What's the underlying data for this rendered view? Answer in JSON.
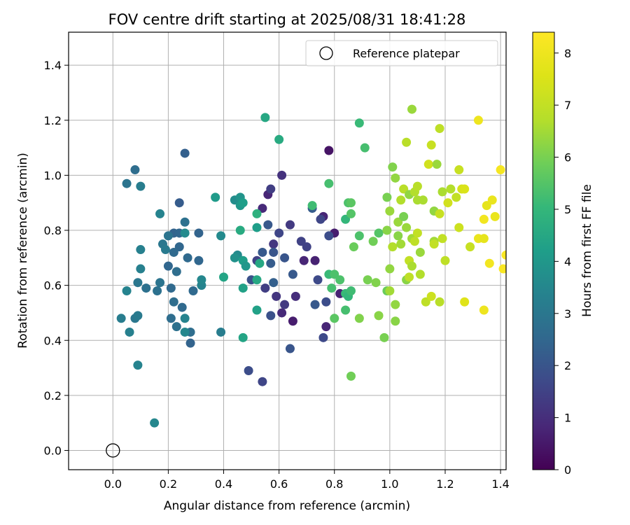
{
  "chart_data": {
    "type": "scatter",
    "title": "FOV centre drift starting at 2025/08/31 18:41:28",
    "xlabel": "Angular distance from reference (arcmin)",
    "ylabel": "Rotation from reference (arcmin)",
    "xlim": [
      -0.16,
      1.42
    ],
    "ylim": [
      -0.07,
      1.52
    ],
    "xticks": [
      "0.0",
      "0.2",
      "0.4",
      "0.6",
      "0.8",
      "1.0",
      "1.2",
      "1.4"
    ],
    "yticks": [
      "0.0",
      "0.2",
      "0.4",
      "0.6",
      "0.8",
      "1.0",
      "1.2",
      "1.4"
    ],
    "grid": true,
    "legend": {
      "position": "top-right",
      "label": "Reference platepar"
    },
    "reference_point": {
      "x": 0.0,
      "y": 0.0
    },
    "colorbar": {
      "label": "Hours from first FF file",
      "colormap": "viridis",
      "range": [
        0,
        8.4
      ],
      "ticks": [
        "0",
        "1",
        "2",
        "3",
        "4",
        "5",
        "6",
        "7",
        "8"
      ]
    },
    "points": [
      {
        "x": 0.78,
        "y": 1.09,
        "c": 0.4
      },
      {
        "x": 0.8,
        "y": 0.79,
        "c": 0.6
      },
      {
        "x": 0.82,
        "y": 0.57,
        "c": 0.7
      },
      {
        "x": 0.77,
        "y": 0.45,
        "c": 0.8
      },
      {
        "x": 0.76,
        "y": 0.85,
        "c": 0.8
      },
      {
        "x": 0.73,
        "y": 0.69,
        "c": 0.7
      },
      {
        "x": 0.65,
        "y": 0.47,
        "c": 0.6
      },
      {
        "x": 0.61,
        "y": 0.5,
        "c": 0.9
      },
      {
        "x": 0.69,
        "y": 0.69,
        "c": 0.8
      },
      {
        "x": 0.66,
        "y": 0.56,
        "c": 1.0
      },
      {
        "x": 0.61,
        "y": 1.0,
        "c": 1.1
      },
      {
        "x": 0.54,
        "y": 0.88,
        "c": 0.9
      },
      {
        "x": 0.56,
        "y": 0.93,
        "c": 0.8
      },
      {
        "x": 0.59,
        "y": 0.56,
        "c": 1.2
      },
      {
        "x": 0.62,
        "y": 0.53,
        "c": 1.3
      },
      {
        "x": 0.58,
        "y": 0.75,
        "c": 1.2
      },
      {
        "x": 0.64,
        "y": 0.82,
        "c": 1.3
      },
      {
        "x": 0.55,
        "y": 0.59,
        "c": 1.4
      },
      {
        "x": 0.52,
        "y": 0.69,
        "c": 1.5
      },
      {
        "x": 0.57,
        "y": 0.95,
        "c": 1.4
      },
      {
        "x": 0.6,
        "y": 0.79,
        "c": 1.6
      },
      {
        "x": 0.68,
        "y": 0.76,
        "c": 1.5
      },
      {
        "x": 0.7,
        "y": 0.74,
        "c": 1.5
      },
      {
        "x": 0.75,
        "y": 0.84,
        "c": 1.6
      },
      {
        "x": 0.74,
        "y": 0.62,
        "c": 1.7
      },
      {
        "x": 0.77,
        "y": 0.54,
        "c": 1.8
      },
      {
        "x": 0.76,
        "y": 0.41,
        "c": 1.7
      },
      {
        "x": 0.78,
        "y": 0.78,
        "c": 1.8
      },
      {
        "x": 0.5,
        "y": 0.62,
        "c": 1.9
      },
      {
        "x": 0.49,
        "y": 0.29,
        "c": 1.8
      },
      {
        "x": 0.54,
        "y": 0.25,
        "c": 1.6
      },
      {
        "x": 0.57,
        "y": 0.49,
        "c": 1.9
      },
      {
        "x": 0.64,
        "y": 0.37,
        "c": 2.0
      },
      {
        "x": 0.62,
        "y": 0.7,
        "c": 2.0
      },
      {
        "x": 0.65,
        "y": 0.64,
        "c": 2.1
      },
      {
        "x": 0.73,
        "y": 0.53,
        "c": 2.1
      },
      {
        "x": 0.72,
        "y": 0.88,
        "c": 2.2
      },
      {
        "x": 0.54,
        "y": 0.72,
        "c": 2.1
      },
      {
        "x": 0.58,
        "y": 0.72,
        "c": 2.0
      },
      {
        "x": 0.56,
        "y": 0.82,
        "c": 2.1
      },
      {
        "x": 0.57,
        "y": 0.68,
        "c": 2.2
      },
      {
        "x": 0.58,
        "y": 0.61,
        "c": 2.3
      },
      {
        "x": 0.24,
        "y": 0.9,
        "c": 2.2
      },
      {
        "x": 0.26,
        "y": 1.08,
        "c": 2.3
      },
      {
        "x": 0.28,
        "y": 0.39,
        "c": 2.4
      },
      {
        "x": 0.2,
        "y": 0.67,
        "c": 2.5
      },
      {
        "x": 0.22,
        "y": 0.79,
        "c": 2.4
      },
      {
        "x": 0.24,
        "y": 0.74,
        "c": 2.5
      },
      {
        "x": 0.22,
        "y": 0.72,
        "c": 2.6
      },
      {
        "x": 0.24,
        "y": 0.79,
        "c": 2.5
      },
      {
        "x": 0.21,
        "y": 0.59,
        "c": 2.6
      },
      {
        "x": 0.22,
        "y": 0.54,
        "c": 2.7
      },
      {
        "x": 0.25,
        "y": 0.52,
        "c": 2.6
      },
      {
        "x": 0.21,
        "y": 0.48,
        "c": 2.7
      },
      {
        "x": 0.23,
        "y": 0.45,
        "c": 2.8
      },
      {
        "x": 0.28,
        "y": 0.43,
        "c": 2.7
      },
      {
        "x": 0.29,
        "y": 0.58,
        "c": 2.6
      },
      {
        "x": 0.31,
        "y": 0.69,
        "c": 2.5
      },
      {
        "x": 0.31,
        "y": 0.79,
        "c": 2.4
      },
      {
        "x": 0.27,
        "y": 0.7,
        "c": 2.6
      },
      {
        "x": 0.23,
        "y": 0.65,
        "c": 2.7
      },
      {
        "x": 0.26,
        "y": 0.83,
        "c": 2.8
      },
      {
        "x": 0.2,
        "y": 0.78,
        "c": 2.9
      },
      {
        "x": 0.18,
        "y": 0.75,
        "c": 3.0
      },
      {
        "x": 0.19,
        "y": 0.73,
        "c": 3.1
      },
      {
        "x": 0.17,
        "y": 0.61,
        "c": 2.9
      },
      {
        "x": 0.16,
        "y": 0.58,
        "c": 2.8
      },
      {
        "x": 0.12,
        "y": 0.59,
        "c": 2.8
      },
      {
        "x": 0.09,
        "y": 0.61,
        "c": 3.0
      },
      {
        "x": 0.08,
        "y": 1.02,
        "c": 2.7
      },
      {
        "x": 0.05,
        "y": 0.97,
        "c": 2.9
      },
      {
        "x": 0.1,
        "y": 0.96,
        "c": 3.2
      },
      {
        "x": 0.17,
        "y": 0.86,
        "c": 3.4
      },
      {
        "x": 0.1,
        "y": 0.73,
        "c": 3.3
      },
      {
        "x": 0.1,
        "y": 0.66,
        "c": 3.3
      },
      {
        "x": 0.05,
        "y": 0.58,
        "c": 3.4
      },
      {
        "x": 0.03,
        "y": 0.48,
        "c": 3.2
      },
      {
        "x": 0.08,
        "y": 0.48,
        "c": 3.0
      },
      {
        "x": 0.09,
        "y": 0.49,
        "c": 3.1
      },
      {
        "x": 0.06,
        "y": 0.43,
        "c": 3.3
      },
      {
        "x": 0.09,
        "y": 0.31,
        "c": 3.4
      },
      {
        "x": 0.15,
        "y": 0.1,
        "c": 3.5
      },
      {
        "x": 0.26,
        "y": 0.43,
        "c": 3.5
      },
      {
        "x": 0.26,
        "y": 0.48,
        "c": 3.4
      },
      {
        "x": 0.32,
        "y": 0.6,
        "c": 3.4
      },
      {
        "x": 0.32,
        "y": 0.62,
        "c": 3.5
      },
      {
        "x": 0.26,
        "y": 0.79,
        "c": 3.6
      },
      {
        "x": 0.39,
        "y": 0.43,
        "c": 3.2
      },
      {
        "x": 0.39,
        "y": 0.78,
        "c": 3.6
      },
      {
        "x": 0.37,
        "y": 0.92,
        "c": 4.1
      },
      {
        "x": 0.4,
        "y": 0.63,
        "c": 4.4
      },
      {
        "x": 0.44,
        "y": 0.91,
        "c": 3.7
      },
      {
        "x": 0.45,
        "y": 0.71,
        "c": 3.6
      },
      {
        "x": 0.46,
        "y": 0.92,
        "c": 3.9
      },
      {
        "x": 0.46,
        "y": 0.89,
        "c": 4.0
      },
      {
        "x": 0.47,
        "y": 0.9,
        "c": 4.2
      },
      {
        "x": 0.44,
        "y": 0.7,
        "c": 3.8
      },
      {
        "x": 0.47,
        "y": 0.69,
        "c": 4.2
      },
      {
        "x": 0.48,
        "y": 0.67,
        "c": 4.0
      },
      {
        "x": 0.47,
        "y": 0.59,
        "c": 4.3
      },
      {
        "x": 0.47,
        "y": 0.41,
        "c": 4.4
      },
      {
        "x": 0.46,
        "y": 0.8,
        "c": 4.6
      },
      {
        "x": 0.52,
        "y": 0.81,
        "c": 4.2
      },
      {
        "x": 0.52,
        "y": 0.51,
        "c": 4.3
      },
      {
        "x": 0.53,
        "y": 0.68,
        "c": 4.5
      },
      {
        "x": 0.52,
        "y": 0.86,
        "c": 4.8
      },
      {
        "x": 0.55,
        "y": 1.21,
        "c": 4.5
      },
      {
        "x": 0.6,
        "y": 1.13,
        "c": 4.6
      },
      {
        "x": 0.52,
        "y": 0.62,
        "c": 4.5
      },
      {
        "x": 0.72,
        "y": 0.89,
        "c": 5.2
      },
      {
        "x": 0.78,
        "y": 0.64,
        "c": 5.1
      },
      {
        "x": 0.78,
        "y": 0.97,
        "c": 5.3
      },
      {
        "x": 0.79,
        "y": 0.59,
        "c": 5.3
      },
      {
        "x": 0.8,
        "y": 0.64,
        "c": 5.4
      },
      {
        "x": 0.8,
        "y": 0.48,
        "c": 5.6
      },
      {
        "x": 0.82,
        "y": 0.62,
        "c": 5.4
      },
      {
        "x": 0.84,
        "y": 0.51,
        "c": 5.3
      },
      {
        "x": 0.84,
        "y": 0.57,
        "c": 5.1
      },
      {
        "x": 0.85,
        "y": 0.56,
        "c": 5.0
      },
      {
        "x": 0.86,
        "y": 0.58,
        "c": 5.2
      },
      {
        "x": 0.84,
        "y": 0.84,
        "c": 5.0
      },
      {
        "x": 0.85,
        "y": 0.9,
        "c": 5.4
      },
      {
        "x": 0.86,
        "y": 0.86,
        "c": 5.5
      },
      {
        "x": 0.86,
        "y": 0.9,
        "c": 5.6
      },
      {
        "x": 0.87,
        "y": 0.74,
        "c": 5.8
      },
      {
        "x": 0.86,
        "y": 0.27,
        "c": 5.9
      },
      {
        "x": 0.89,
        "y": 0.48,
        "c": 6.1
      },
      {
        "x": 0.89,
        "y": 0.78,
        "c": 5.4
      },
      {
        "x": 0.89,
        "y": 1.19,
        "c": 5.1
      },
      {
        "x": 0.91,
        "y": 1.1,
        "c": 5.3
      },
      {
        "x": 0.92,
        "y": 0.62,
        "c": 6.0
      },
      {
        "x": 0.94,
        "y": 0.76,
        "c": 5.9
      },
      {
        "x": 0.95,
        "y": 0.61,
        "c": 6.1
      },
      {
        "x": 0.96,
        "y": 0.49,
        "c": 6.2
      },
      {
        "x": 0.96,
        "y": 0.79,
        "c": 5.5
      },
      {
        "x": 0.98,
        "y": 0.41,
        "c": 6.0
      },
      {
        "x": 0.99,
        "y": 0.58,
        "c": 5.8
      },
      {
        "x": 0.99,
        "y": 0.8,
        "c": 6.2
      },
      {
        "x": 0.99,
        "y": 0.92,
        "c": 6.0
      },
      {
        "x": 1.0,
        "y": 0.87,
        "c": 6.4
      },
      {
        "x": 1.0,
        "y": 0.66,
        "c": 6.3
      },
      {
        "x": 1.0,
        "y": 0.58,
        "c": 6.5
      },
      {
        "x": 1.01,
        "y": 0.74,
        "c": 6.7
      },
      {
        "x": 1.01,
        "y": 1.03,
        "c": 6.1
      },
      {
        "x": 1.02,
        "y": 0.99,
        "c": 6.3
      },
      {
        "x": 1.02,
        "y": 0.47,
        "c": 6.2
      },
      {
        "x": 1.02,
        "y": 0.53,
        "c": 6.3
      },
      {
        "x": 1.03,
        "y": 0.83,
        "c": 6.4
      },
      {
        "x": 1.03,
        "y": 0.78,
        "c": 6.2
      },
      {
        "x": 1.04,
        "y": 0.75,
        "c": 6.5
      },
      {
        "x": 1.04,
        "y": 0.91,
        "c": 6.7
      },
      {
        "x": 1.05,
        "y": 0.95,
        "c": 6.8
      },
      {
        "x": 1.05,
        "y": 0.85,
        "c": 6.0
      },
      {
        "x": 1.06,
        "y": 0.62,
        "c": 6.2
      },
      {
        "x": 1.06,
        "y": 0.81,
        "c": 6.4
      },
      {
        "x": 1.06,
        "y": 1.12,
        "c": 6.8
      },
      {
        "x": 1.07,
        "y": 0.63,
        "c": 6.9
      },
      {
        "x": 1.07,
        "y": 0.69,
        "c": 7.0
      },
      {
        "x": 1.07,
        "y": 0.93,
        "c": 6.3
      },
      {
        "x": 1.08,
        "y": 1.24,
        "c": 6.4
      },
      {
        "x": 1.08,
        "y": 0.67,
        "c": 6.6
      },
      {
        "x": 1.08,
        "y": 0.77,
        "c": 6.5
      },
      {
        "x": 1.09,
        "y": 0.76,
        "c": 6.9
      },
      {
        "x": 1.09,
        "y": 0.94,
        "c": 6.7
      },
      {
        "x": 1.1,
        "y": 0.96,
        "c": 6.8
      },
      {
        "x": 1.1,
        "y": 0.79,
        "c": 7.0
      },
      {
        "x": 1.1,
        "y": 0.91,
        "c": 6.6
      },
      {
        "x": 1.11,
        "y": 0.72,
        "c": 6.4
      },
      {
        "x": 1.11,
        "y": 0.64,
        "c": 6.7
      },
      {
        "x": 1.12,
        "y": 0.91,
        "c": 6.6
      },
      {
        "x": 1.13,
        "y": 0.54,
        "c": 6.9
      },
      {
        "x": 1.14,
        "y": 1.04,
        "c": 7.3
      },
      {
        "x": 1.15,
        "y": 1.11,
        "c": 7.1
      },
      {
        "x": 1.15,
        "y": 0.56,
        "c": 7.2
      },
      {
        "x": 1.16,
        "y": 0.87,
        "c": 6.3
      },
      {
        "x": 1.16,
        "y": 0.76,
        "c": 6.5
      },
      {
        "x": 1.16,
        "y": 0.75,
        "c": 7.0
      },
      {
        "x": 1.17,
        "y": 1.04,
        "c": 6.4
      },
      {
        "x": 1.18,
        "y": 1.17,
        "c": 6.9
      },
      {
        "x": 1.18,
        "y": 0.86,
        "c": 7.1
      },
      {
        "x": 1.18,
        "y": 0.54,
        "c": 6.8
      },
      {
        "x": 1.19,
        "y": 0.77,
        "c": 7.0
      },
      {
        "x": 1.19,
        "y": 0.94,
        "c": 6.6
      },
      {
        "x": 1.2,
        "y": 0.69,
        "c": 6.9
      },
      {
        "x": 1.21,
        "y": 0.9,
        "c": 7.3
      },
      {
        "x": 1.22,
        "y": 0.95,
        "c": 6.7
      },
      {
        "x": 1.24,
        "y": 0.92,
        "c": 7.0
      },
      {
        "x": 1.25,
        "y": 1.02,
        "c": 7.1
      },
      {
        "x": 1.25,
        "y": 0.81,
        "c": 7.2
      },
      {
        "x": 1.26,
        "y": 0.95,
        "c": 7.4
      },
      {
        "x": 1.27,
        "y": 0.95,
        "c": 7.5
      },
      {
        "x": 1.27,
        "y": 0.54,
        "c": 7.6
      },
      {
        "x": 1.29,
        "y": 0.74,
        "c": 7.1
      },
      {
        "x": 1.32,
        "y": 0.77,
        "c": 7.9
      },
      {
        "x": 1.32,
        "y": 1.2,
        "c": 8.0
      },
      {
        "x": 1.34,
        "y": 0.84,
        "c": 8.1
      },
      {
        "x": 1.34,
        "y": 0.51,
        "c": 8.0
      },
      {
        "x": 1.34,
        "y": 0.77,
        "c": 7.8
      },
      {
        "x": 1.35,
        "y": 0.89,
        "c": 7.8
      },
      {
        "x": 1.36,
        "y": 0.68,
        "c": 8.1
      },
      {
        "x": 1.37,
        "y": 0.91,
        "c": 7.9
      },
      {
        "x": 1.38,
        "y": 0.85,
        "c": 7.9
      },
      {
        "x": 1.4,
        "y": 1.02,
        "c": 8.2
      },
      {
        "x": 1.41,
        "y": 0.66,
        "c": 8.3
      },
      {
        "x": 1.42,
        "y": 0.71,
        "c": 8.3
      }
    ]
  }
}
